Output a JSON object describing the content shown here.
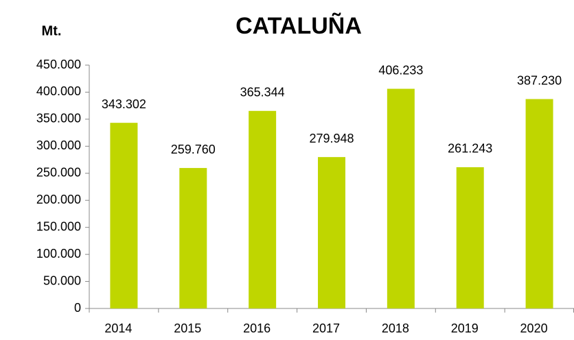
{
  "chart_data": {
    "type": "bar",
    "title": "CATALUÑA",
    "y_label": "Mt.",
    "categories": [
      "2014",
      "2015",
      "2016",
      "2017",
      "2018",
      "2019",
      "2020"
    ],
    "values": [
      343302,
      259760,
      365344,
      279948,
      406233,
      261243,
      387230
    ],
    "value_labels": [
      "343.302",
      "259.760",
      "365.344",
      "279.948",
      "406.233",
      "261.243",
      "387.230"
    ],
    "color": "#bfd600",
    "ylim": [
      0,
      450000
    ],
    "yticks": [
      0,
      {
        "value": 50000,
        "label": "50.000"
      },
      {
        "value": 100000,
        "label": "100.000"
      },
      {
        "value": 150000,
        "label": "150.000"
      },
      {
        "value": 200000,
        "label": "200.000"
      },
      {
        "value": 250000,
        "label": "250.000"
      },
      {
        "value": 300000,
        "label": "300.000"
      },
      {
        "value": 350000,
        "label": "350.000"
      },
      {
        "value": 400000,
        "label": "400.000"
      },
      {
        "value": 450000,
        "label": "450.000"
      }
    ],
    "grid": false
  }
}
